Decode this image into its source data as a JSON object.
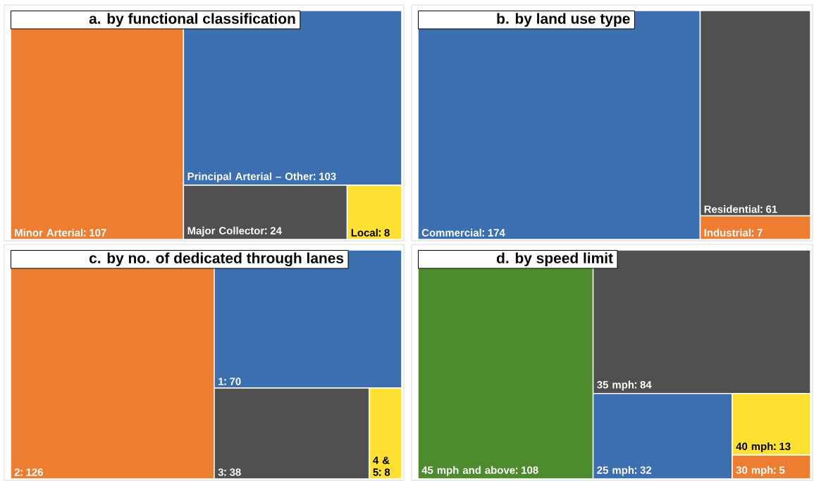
{
  "chart_data": [
    {
      "type": "other",
      "title": "a. by functional classification",
      "categories": [
        "Minor Arterial",
        "Principal Arterial – Other",
        "Major Collector",
        "Local"
      ],
      "values": [
        107,
        103,
        24,
        8
      ],
      "colors": [
        "#ed7d31",
        "#3b6fb0",
        "#505050",
        "#ffe033"
      ],
      "data_labels": true
    },
    {
      "type": "other",
      "title": "b. by land use type",
      "categories": [
        "Commercial",
        "Residential",
        "Industrial"
      ],
      "values": [
        174,
        61,
        7
      ],
      "colors": [
        "#3b6fb0",
        "#505050",
        "#ed7d31"
      ],
      "data_labels": true
    },
    {
      "type": "other",
      "title": "c. by no. of dedicated through lanes",
      "categories": [
        "2",
        "1",
        "3",
        "4 & 5"
      ],
      "values": [
        126,
        70,
        38,
        8
      ],
      "colors": [
        "#ed7d31",
        "#3b6fb0",
        "#505050",
        "#ffe033"
      ],
      "data_labels": true
    },
    {
      "type": "other",
      "title": "d. by speed limit",
      "categories": [
        "45 mph and above",
        "35 mph",
        "25 mph",
        "40 mph",
        "30 mph"
      ],
      "values": [
        108,
        84,
        32,
        13,
        5
      ],
      "colors": [
        "#4e8a2e",
        "#505050",
        "#3b6fb0",
        "#ffe033",
        "#ed7d31"
      ],
      "data_labels": true
    }
  ]
}
